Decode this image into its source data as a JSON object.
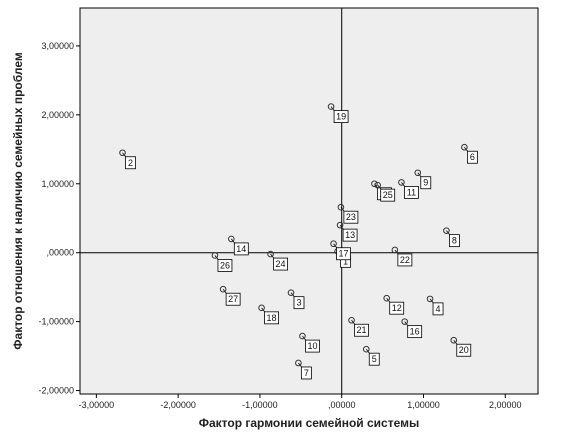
{
  "chart_data": {
    "type": "scatter",
    "xlabel": "Фактор гармонии семейной системы",
    "ylabel": "Фактор отношения к наличию семейных проблем",
    "xlim": [
      -3.2,
      2.4
    ],
    "ylim": [
      -2.05,
      3.55
    ],
    "x_ticks": [
      -3,
      -2,
      -1,
      0,
      1,
      2
    ],
    "x_tick_labels": [
      "-3,00000",
      "-2,00000",
      "-1,00000",
      ",00000",
      "1,00000",
      "2,00000"
    ],
    "y_ticks": [
      -2,
      -1,
      0,
      1,
      2,
      3
    ],
    "y_tick_labels": [
      "-2,00000",
      "-1,00000",
      ",00000",
      "1,00000",
      "2,00000",
      "3,00000"
    ],
    "reference_lines": {
      "x": 0,
      "y": 0
    },
    "grid": false,
    "points": [
      {
        "label": "1",
        "x": -0.05,
        "y": 0.02
      },
      {
        "label": "2",
        "x": -2.68,
        "y": 1.45
      },
      {
        "label": "3",
        "x": -0.62,
        "y": -0.58
      },
      {
        "label": "4",
        "x": 1.08,
        "y": -0.67
      },
      {
        "label": "5",
        "x": 0.3,
        "y": -1.4
      },
      {
        "label": "6",
        "x": 1.5,
        "y": 1.53
      },
      {
        "label": "7",
        "x": -0.53,
        "y": -1.6
      },
      {
        "label": "8",
        "x": 1.28,
        "y": 0.32
      },
      {
        "label": "9",
        "x": 0.93,
        "y": 1.16
      },
      {
        "label": "10",
        "x": -0.48,
        "y": -1.21
      },
      {
        "label": "11",
        "x": 0.73,
        "y": 1.02
      },
      {
        "label": "12",
        "x": 0.55,
        "y": -0.66
      },
      {
        "label": "13",
        "x": -0.02,
        "y": 0.4
      },
      {
        "label": "14",
        "x": -1.35,
        "y": 0.2
      },
      {
        "label": "15",
        "x": 0.4,
        "y": 1.0
      },
      {
        "label": "16",
        "x": 0.77,
        "y": -1.0
      },
      {
        "label": "17",
        "x": -0.1,
        "y": 0.13
      },
      {
        "label": "18",
        "x": -0.98,
        "y": -0.8
      },
      {
        "label": "19",
        "x": -0.13,
        "y": 2.12
      },
      {
        "label": "20",
        "x": 1.37,
        "y": -1.27
      },
      {
        "label": "21",
        "x": 0.12,
        "y": -0.98
      },
      {
        "label": "22",
        "x": 0.65,
        "y": 0.04
      },
      {
        "label": "23",
        "x": -0.01,
        "y": 0.66
      },
      {
        "label": "24",
        "x": -0.87,
        "y": -0.02
      },
      {
        "label": "25",
        "x": 0.44,
        "y": 0.98
      },
      {
        "label": "26",
        "x": -1.55,
        "y": -0.04
      },
      {
        "label": "27",
        "x": -1.45,
        "y": -0.53
      }
    ]
  }
}
